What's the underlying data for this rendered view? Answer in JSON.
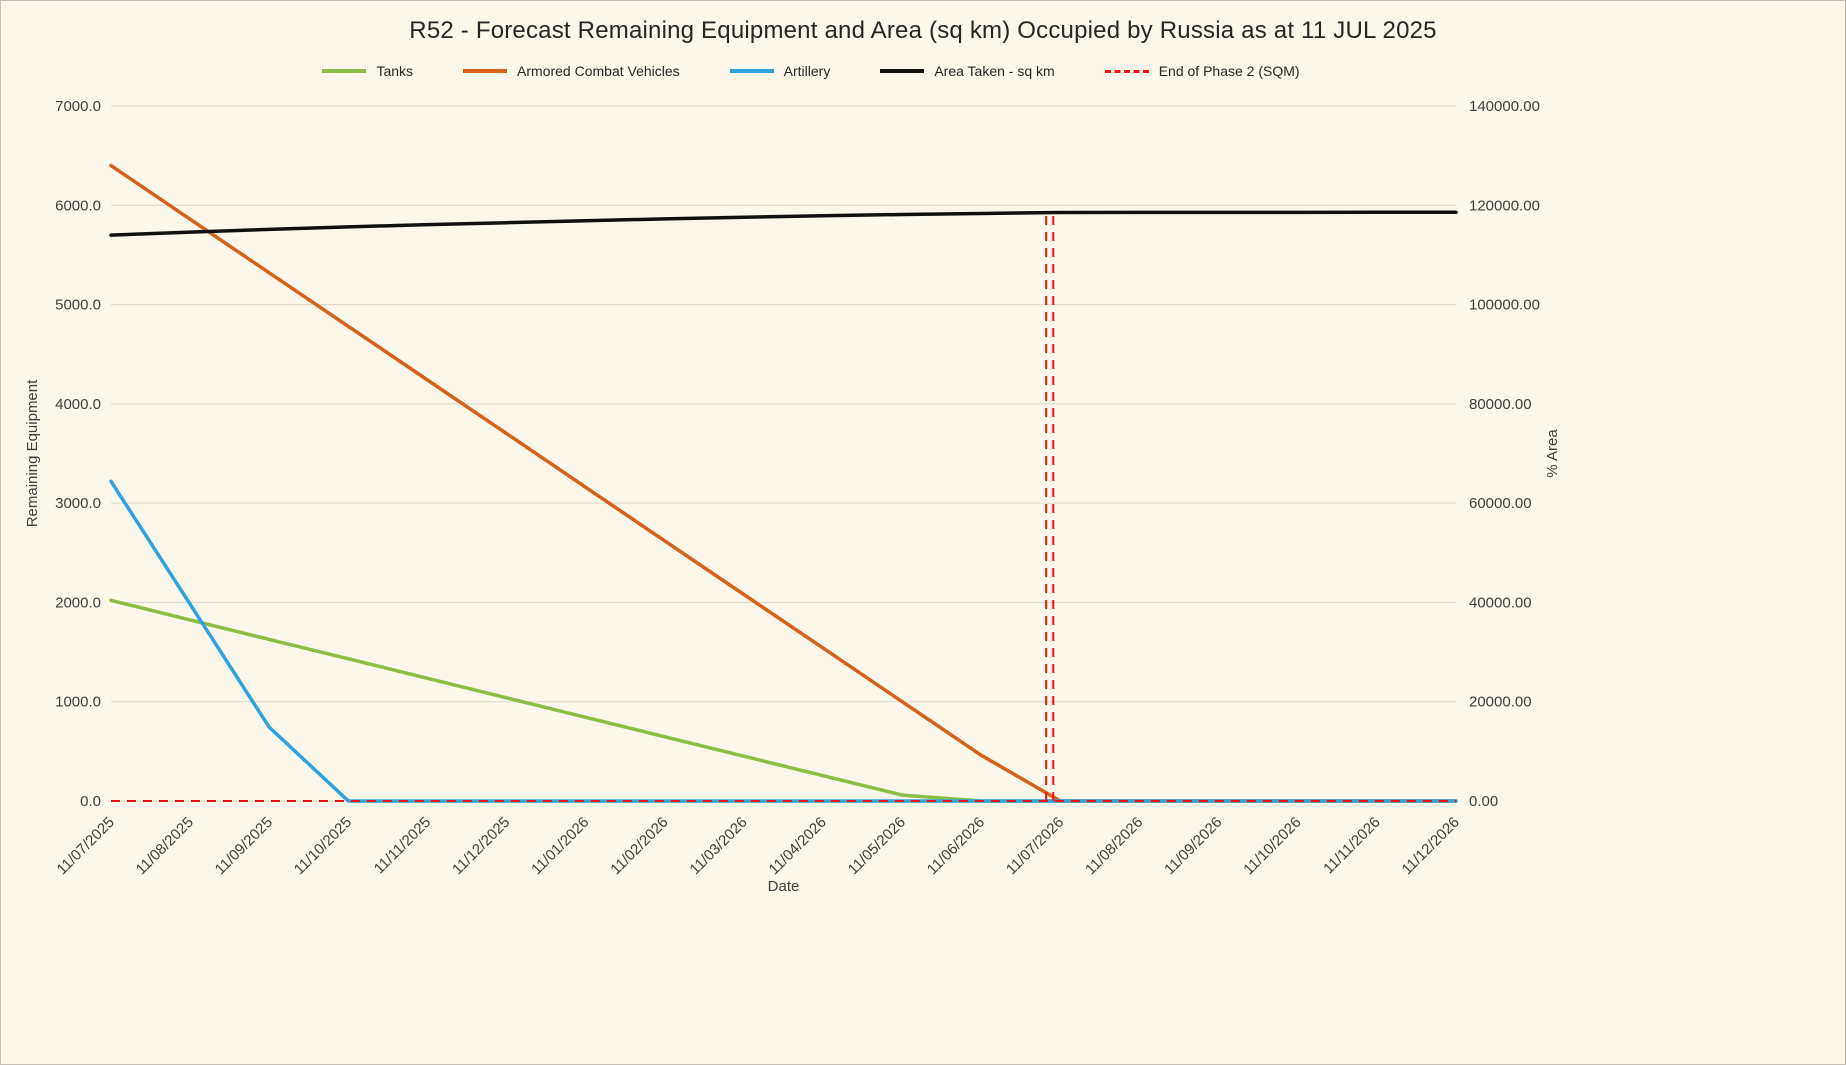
{
  "page": {
    "background_color": "#fbf7ea"
  },
  "chart_data": {
    "type": "line",
    "title": "R52 - Forecast Remaining Equipment and Area (sq km) Occupied by Russia as at 11 JUL 2025",
    "xlabel": "Date",
    "ylabel_left": "Remaining Equipment",
    "ylabel_right": "% Area",
    "grid": true,
    "legend_position": "top",
    "x_labels": [
      "11/07/2025",
      "11/08/2025",
      "11/09/2025",
      "11/10/2025",
      "11/11/2025",
      "11/12/2025",
      "11/01/2026",
      "11/02/2026",
      "11/03/2026",
      "11/04/2026",
      "11/05/2026",
      "11/06/2026",
      "11/07/2026",
      "11/08/2026",
      "11/09/2026",
      "11/10/2026",
      "11/11/2026",
      "11/12/2026"
    ],
    "left_axis": {
      "min": 0,
      "max": 7000,
      "ticks": [
        "0.0",
        "1000.0",
        "2000.0",
        "3000.0",
        "4000.0",
        "5000.0",
        "6000.0",
        "7000.0"
      ]
    },
    "right_axis": {
      "min": 0,
      "max": 140000,
      "ticks": [
        "0.00",
        "20000.00",
        "40000.00",
        "60000.00",
        "80000.00",
        "100000.00",
        "120000.00",
        "140000.00"
      ]
    },
    "series": [
      {
        "name": "Tanks",
        "axis": "left",
        "color": "#8cbd45",
        "dash": "solid",
        "values": [
          2020,
          1824,
          1628,
          1432,
          1236,
          1039,
          843,
          647,
          451,
          255,
          59,
          0,
          0,
          0,
          0,
          0,
          0,
          0
        ]
      },
      {
        "name": "Armored Combat Vehicles",
        "axis": "left",
        "color": "#d6611d",
        "dash": "solid",
        "values": [
          6400,
          5860,
          5320,
          4780,
          4240,
          3700,
          3160,
          2620,
          2080,
          1540,
          1000,
          460,
          0,
          0,
          0,
          0,
          0,
          0
        ]
      },
      {
        "name": "Artillery",
        "axis": "left",
        "color": "#31a2e0",
        "dash": "solid",
        "values": [
          3220,
          1982,
          743,
          0,
          0,
          0,
          0,
          0,
          0,
          0,
          0,
          0,
          0,
          0,
          0,
          0,
          0,
          0
        ]
      },
      {
        "name": "Area Taken - sq km",
        "axis": "right",
        "color": "#111111",
        "dash": "solid",
        "values": [
          114000,
          114600,
          115150,
          115650,
          116100,
          116500,
          116900,
          117250,
          117600,
          117900,
          118150,
          118350,
          118550,
          118560,
          118570,
          118575,
          118580,
          118580
        ]
      }
    ],
    "annotation": {
      "name": "End of Phase 2 (SQM)",
      "color": "#ee1111",
      "dash": "dashed",
      "hline_value": 0,
      "vline_x": 11.82,
      "vline_x2": 11.91,
      "vline_top_value": 118550
    },
    "legend": [
      {
        "label": "Tanks",
        "color": "#8cbd45",
        "dash": "solid"
      },
      {
        "label": "Armored Combat Vehicles",
        "color": "#d6611d",
        "dash": "solid"
      },
      {
        "label": "Artillery",
        "color": "#31a2e0",
        "dash": "solid"
      },
      {
        "label": "Area Taken - sq km",
        "color": "#111111",
        "dash": "solid"
      },
      {
        "label": "End of Phase 2 (SQM)",
        "color": "#ee1111",
        "dash": "dashed"
      }
    ]
  }
}
